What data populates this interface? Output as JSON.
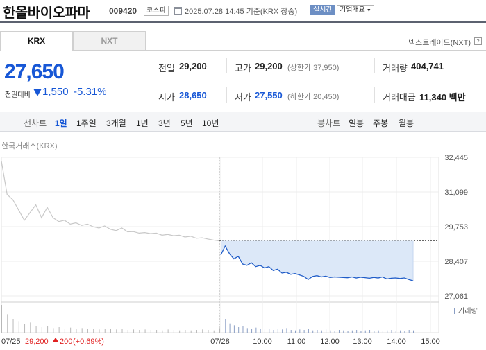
{
  "header": {
    "company_name": "한올바이오파마",
    "stock_code": "009420",
    "market_badge": "코스피",
    "timestamp": "2025.07.28 14:45 기준(KRX 장중)",
    "live_badge": "실시간",
    "company_info_badge": "기업개요",
    "icons": {
      "calendar": "calendar-icon",
      "dropdown": "chevron-down-icon"
    }
  },
  "tabs": [
    {
      "label": "KRX",
      "active": true
    },
    {
      "label": "NXT",
      "active": false
    }
  ],
  "nxt_link": {
    "label": "넥스트레이드(NXT)",
    "help": "?"
  },
  "quote": {
    "price": "27,650",
    "change_label": "전일대비",
    "change_direction": "down",
    "change_value": "1,550",
    "change_percent": "-5.31%"
  },
  "stats": {
    "prev_close_label": "전일",
    "prev_close": "29,200",
    "high_label": "고가",
    "high": "29,200",
    "upper_limit": "(상한가 37,950)",
    "volume_label": "거래량",
    "volume": "404,741",
    "open_label": "시가",
    "open": "28,650",
    "low_label": "저가",
    "low": "27,550",
    "lower_limit": "(하한가 20,450)",
    "trade_value_label": "거래대금",
    "trade_value": "11,340 백만"
  },
  "period_bar": {
    "line_title": "선차트",
    "line_options": [
      "1일",
      "1주일",
      "3개월",
      "1년",
      "3년",
      "5년",
      "10년"
    ],
    "line_selected": "1일",
    "candle_title": "봉차트",
    "candle_options": [
      "일봉",
      "주봉",
      "월봉"
    ]
  },
  "chart_source": "한국거래소(KRX)",
  "chart_data": {
    "type": "line",
    "y_ticks": [
      "32,445",
      "31,099",
      "29,753",
      "28,407",
      "27,061"
    ],
    "ylim": [
      27061,
      32445
    ],
    "x_ticks": [
      "07/25",
      "07/28",
      "10:00",
      "11:00",
      "12:00",
      "13:00",
      "14:00",
      "15:00"
    ],
    "reference_price": 29200,
    "volume_legend": "거래량",
    "prev_day_summary": {
      "date": "07/25",
      "close": "29,200",
      "change": "200",
      "change_pct": "(+0.69%)",
      "direction": "up"
    },
    "colors": {
      "prev_line": "#c8c8c8",
      "today_line": "#1f5cc8",
      "fill": "#dce8f8",
      "up": "#e02020",
      "down": "#1757d6"
    },
    "series": [
      {
        "day": "prev",
        "values": [
          32300,
          31000,
          30800,
          30400,
          30000,
          30300,
          30600,
          30100,
          30500,
          30100,
          29950,
          30000,
          29850,
          29900,
          29800,
          29850,
          29750,
          29700,
          29780,
          29650,
          29600,
          29700,
          29550,
          29560,
          29500,
          29520,
          29480,
          29500,
          29420,
          29450,
          29400,
          29420,
          29350,
          29380,
          29300,
          29320,
          29270,
          29230,
          29200
        ]
      },
      {
        "day": "today",
        "values": [
          28650,
          29000,
          28700,
          28500,
          28600,
          28300,
          28250,
          28350,
          28200,
          28250,
          28150,
          28200,
          28050,
          28100,
          27950,
          27980,
          27900,
          27930,
          27880,
          27820,
          27700,
          27820,
          27850,
          27800,
          27830,
          27780,
          27800,
          27790,
          27780,
          27770,
          27800,
          27760,
          27790,
          27770,
          27750,
          27780,
          27760,
          27800,
          27720,
          27750,
          27760,
          27740,
          27760,
          27700,
          27650
        ]
      }
    ],
    "volume": {
      "prev": [
        60,
        40,
        30,
        25,
        18,
        22,
        15,
        12,
        14,
        10,
        12,
        9,
        11,
        8,
        10,
        9,
        8,
        7,
        9,
        8,
        7,
        8,
        6,
        7,
        6,
        7,
        6,
        6,
        5,
        7,
        6,
        5,
        6,
        5,
        6,
        7,
        6,
        5,
        10
      ],
      "today": [
        55,
        30,
        20,
        16,
        12,
        14,
        10,
        9,
        11,
        8,
        7,
        9,
        6,
        8,
        7,
        10,
        6,
        5,
        7,
        6,
        8,
        5,
        6,
        5,
        7,
        5,
        4,
        6,
        5,
        4,
        5,
        6,
        4,
        5,
        6,
        4,
        5,
        4,
        5,
        6,
        4,
        5,
        4,
        6,
        5
      ]
    }
  }
}
